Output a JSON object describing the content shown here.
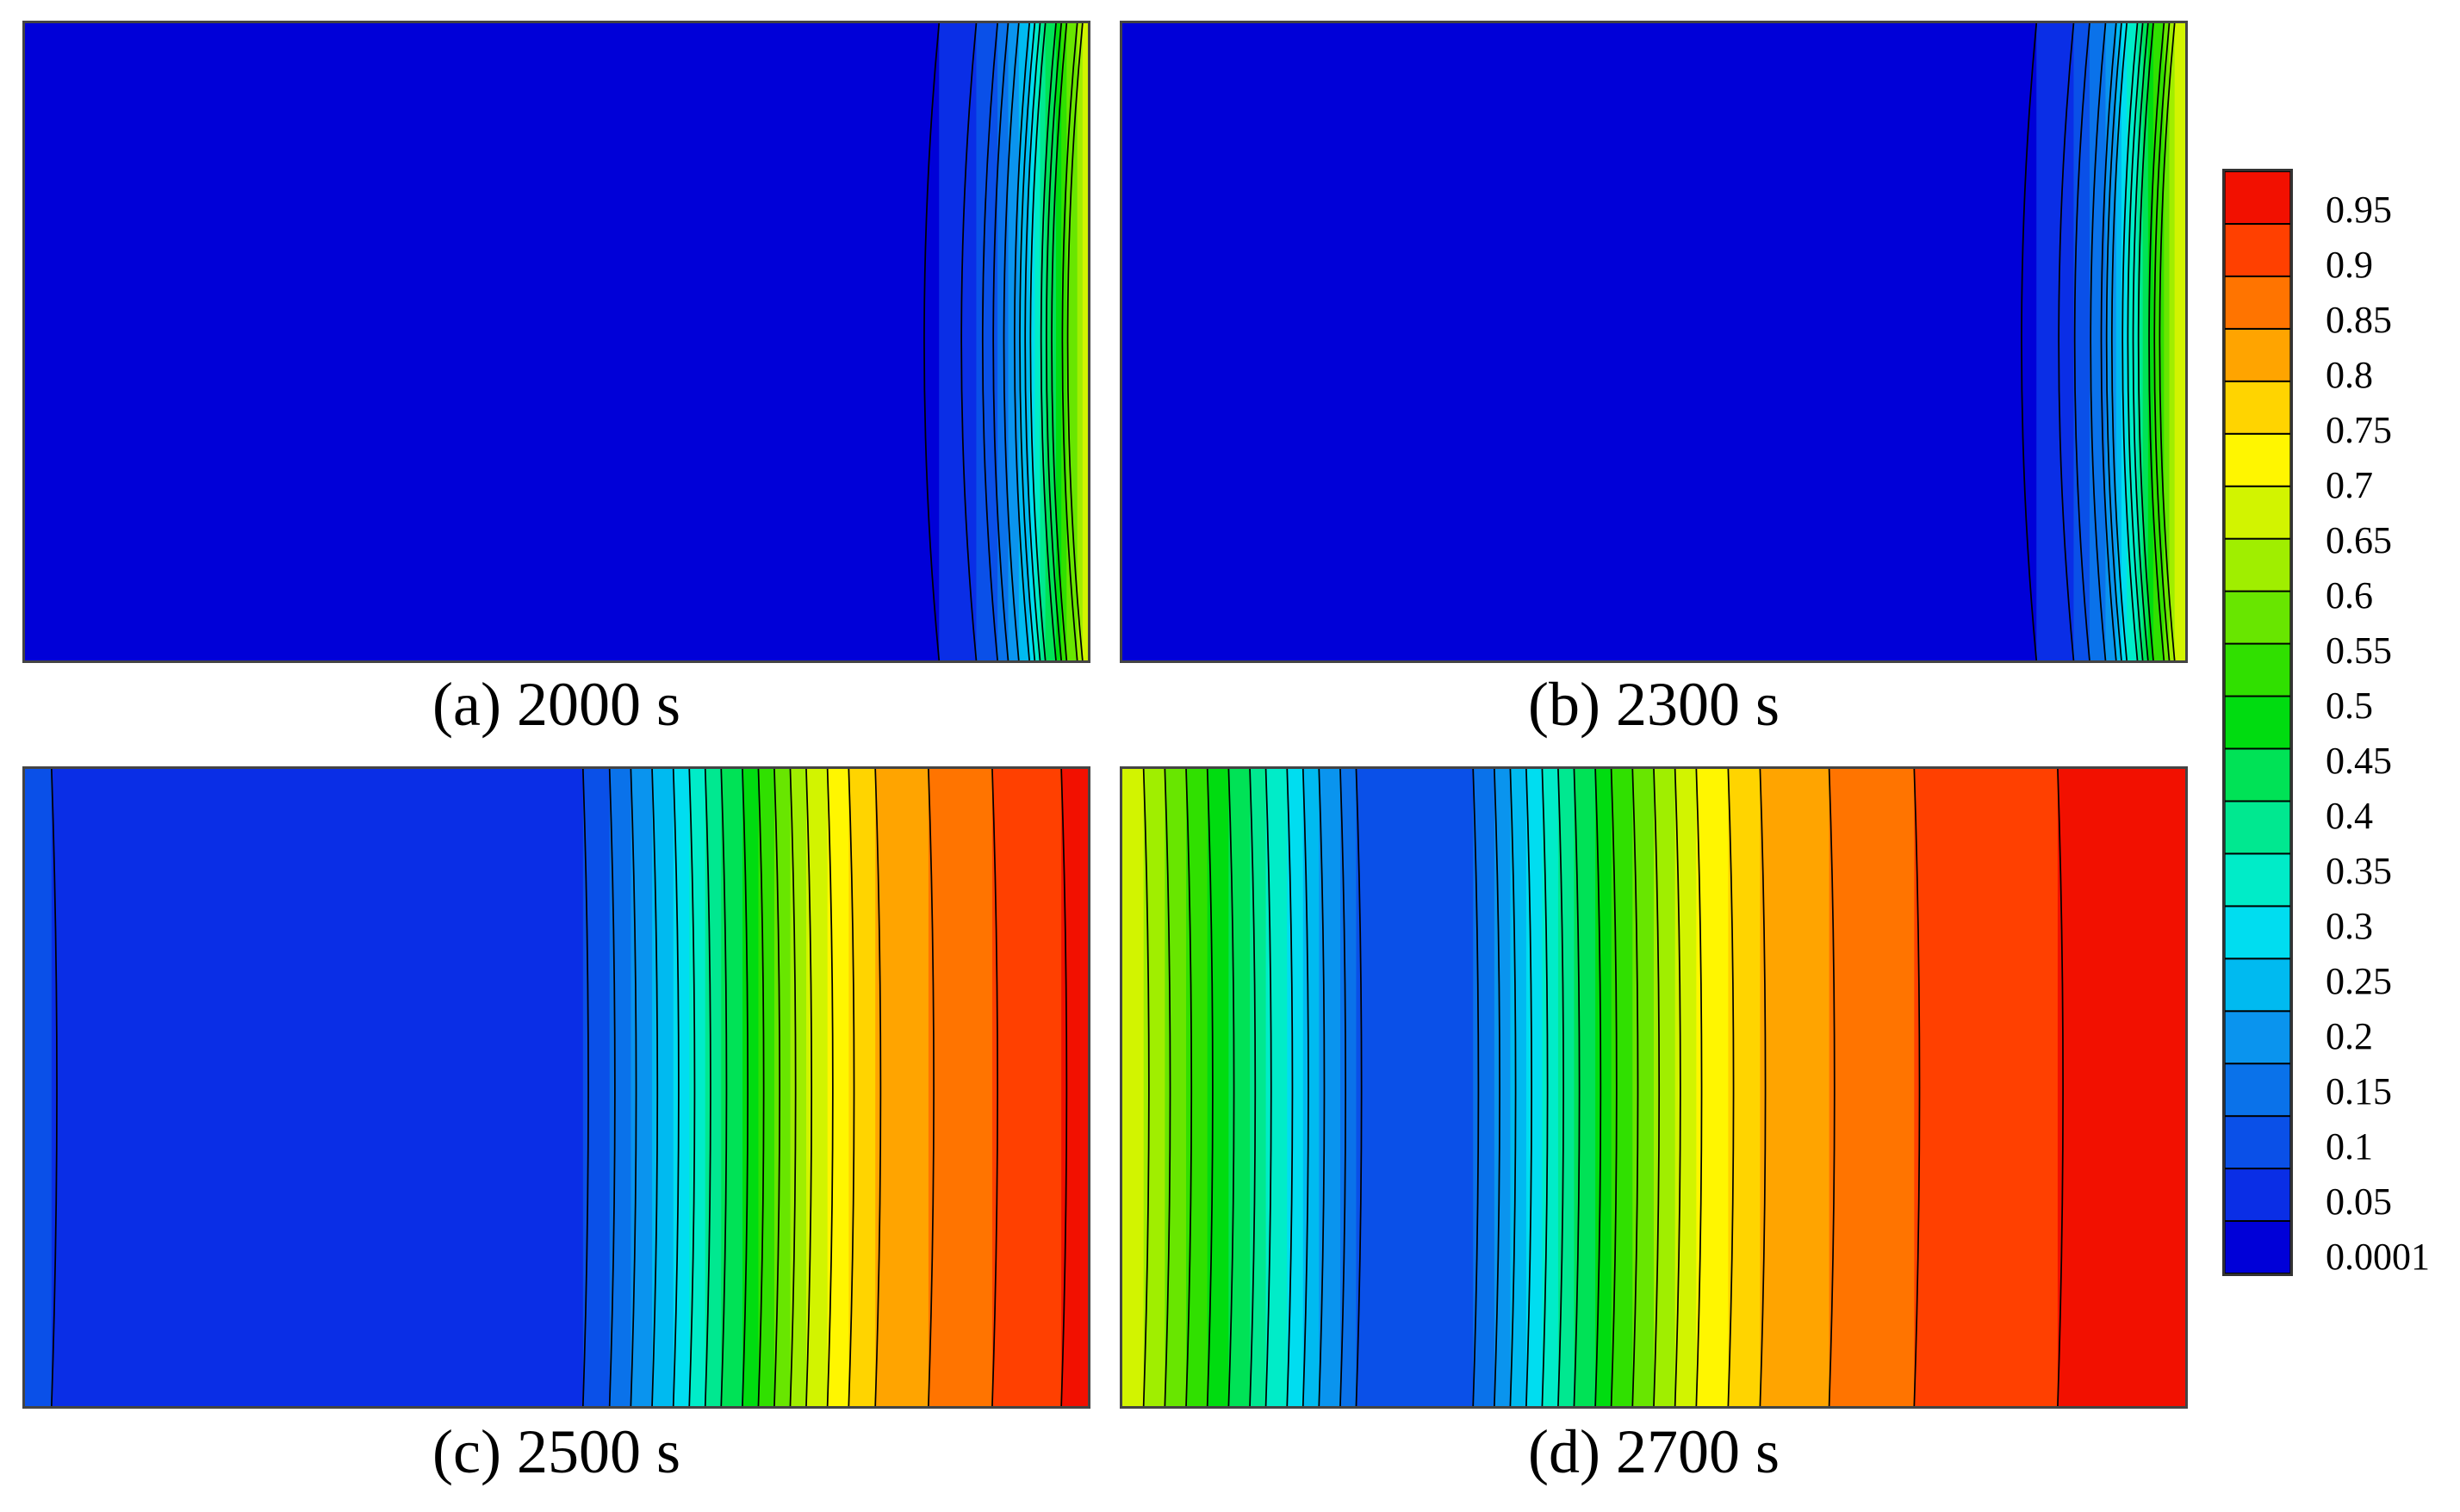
{
  "chart_data": {
    "type": "heatmap",
    "colorbar": {
      "levels": [
        0.0001,
        0.05,
        0.1,
        0.15,
        0.2,
        0.25,
        0.3,
        0.35,
        0.4,
        0.45,
        0.5,
        0.55,
        0.6,
        0.65,
        0.7,
        0.75,
        0.8,
        0.85,
        0.9,
        0.95
      ],
      "labels": [
        "0.95",
        "0.9",
        "0.85",
        "0.8",
        "0.75",
        "0.7",
        "0.65",
        "0.6",
        "0.55",
        "0.5",
        "0.45",
        "0.4",
        "0.35",
        "0.3",
        "0.25",
        "0.2",
        "0.15",
        "0.1",
        "0.05",
        "0.0001"
      ],
      "colors": [
        "#0000d8",
        "#0a2ee6",
        "#0a50e8",
        "#0a72ea",
        "#0a94ee",
        "#00baf0",
        "#00ddf0",
        "#00ecc8",
        "#00e890",
        "#00e256",
        "#00dc10",
        "#30e000",
        "#68e600",
        "#a0ee00",
        "#d2f400",
        "#fff600",
        "#ffd400",
        "#ffa400",
        "#ff7400",
        "#ff4000",
        "#f21000"
      ]
    },
    "panels": [
      {
        "caption": "(a) 2000 s",
        "profile": [
          [
            0,
            0
          ],
          [
            0.86,
            0
          ],
          [
            0.88,
            0.02
          ],
          [
            0.9,
            0.06
          ],
          [
            0.92,
            0.12
          ],
          [
            0.94,
            0.22
          ],
          [
            0.96,
            0.38
          ],
          [
            0.98,
            0.55
          ],
          [
            1.0,
            0.68
          ]
        ]
      },
      {
        "caption": "(b) 2300 s",
        "profile": [
          [
            0,
            0
          ],
          [
            0.86,
            0
          ],
          [
            0.88,
            0.02
          ],
          [
            0.9,
            0.06
          ],
          [
            0.92,
            0.13
          ],
          [
            0.94,
            0.24
          ],
          [
            0.96,
            0.4
          ],
          [
            0.98,
            0.57
          ],
          [
            1.0,
            0.7
          ]
        ]
      },
      {
        "caption": "(c) 2500 s",
        "profile": [
          [
            0,
            0.06
          ],
          [
            0.08,
            0.03
          ],
          [
            0.2,
            0.0001
          ],
          [
            0.48,
            0.0001
          ],
          [
            0.5,
            0.02
          ],
          [
            0.53,
            0.06
          ],
          [
            0.56,
            0.12
          ],
          [
            0.6,
            0.22
          ],
          [
            0.64,
            0.35
          ],
          [
            0.68,
            0.47
          ],
          [
            0.72,
            0.6
          ],
          [
            0.76,
            0.72
          ],
          [
            0.8,
            0.8
          ],
          [
            0.86,
            0.86
          ],
          [
            0.92,
            0.91
          ],
          [
            1.0,
            0.97
          ]
        ]
      },
      {
        "caption": "(d) 2700 s",
        "profile": [
          [
            0,
            0.7
          ],
          [
            0.06,
            0.55
          ],
          [
            0.12,
            0.4
          ],
          [
            0.18,
            0.22
          ],
          [
            0.22,
            0.1
          ],
          [
            0.25,
            0.05
          ],
          [
            0.3,
            0.05
          ],
          [
            0.34,
            0.12
          ],
          [
            0.38,
            0.25
          ],
          [
            0.42,
            0.38
          ],
          [
            0.48,
            0.55
          ],
          [
            0.54,
            0.7
          ],
          [
            0.6,
            0.8
          ],
          [
            0.68,
            0.86
          ],
          [
            0.78,
            0.92
          ],
          [
            0.88,
            0.95
          ],
          [
            1.0,
            0.98
          ]
        ]
      }
    ]
  }
}
